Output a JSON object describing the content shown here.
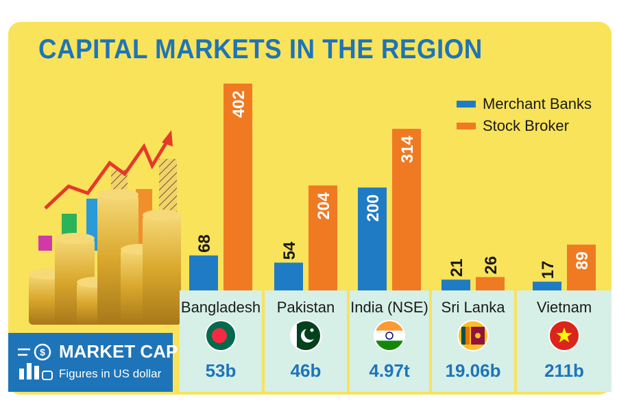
{
  "title": "CAPITAL MARKETS IN THE REGION",
  "legend": [
    {
      "label": "Merchant Banks",
      "color": "#1f7cc4"
    },
    {
      "label": "Stock Broker",
      "color": "#ef7a22"
    }
  ],
  "market_cap": {
    "title": "MARKET CAP",
    "subtitle": "Figures in US dollar"
  },
  "chart_data": {
    "type": "bar",
    "title": "CAPITAL MARKETS IN THE REGION",
    "categories": [
      "Bangladesh",
      "Pakistan",
      "India (NSE)",
      "Sri Lanka",
      "Vietnam"
    ],
    "series": [
      {
        "name": "Merchant Banks",
        "values": [
          68,
          54,
          200,
          21,
          17
        ],
        "color": "#1f7cc4"
      },
      {
        "name": "Stock Broker",
        "values": [
          402,
          204,
          314,
          26,
          89
        ],
        "color": "#ef7a22"
      }
    ],
    "ylim": [
      0,
      402
    ],
    "grid": false,
    "legend_position": "top-right",
    "market_cap": [
      "53b",
      "46b",
      "4.97t",
      "19.06b",
      "211b"
    ],
    "flags": [
      "bangladesh-flag",
      "pakistan-flag",
      "india-flag",
      "sri-lanka-flag",
      "vietnam-flag"
    ]
  }
}
